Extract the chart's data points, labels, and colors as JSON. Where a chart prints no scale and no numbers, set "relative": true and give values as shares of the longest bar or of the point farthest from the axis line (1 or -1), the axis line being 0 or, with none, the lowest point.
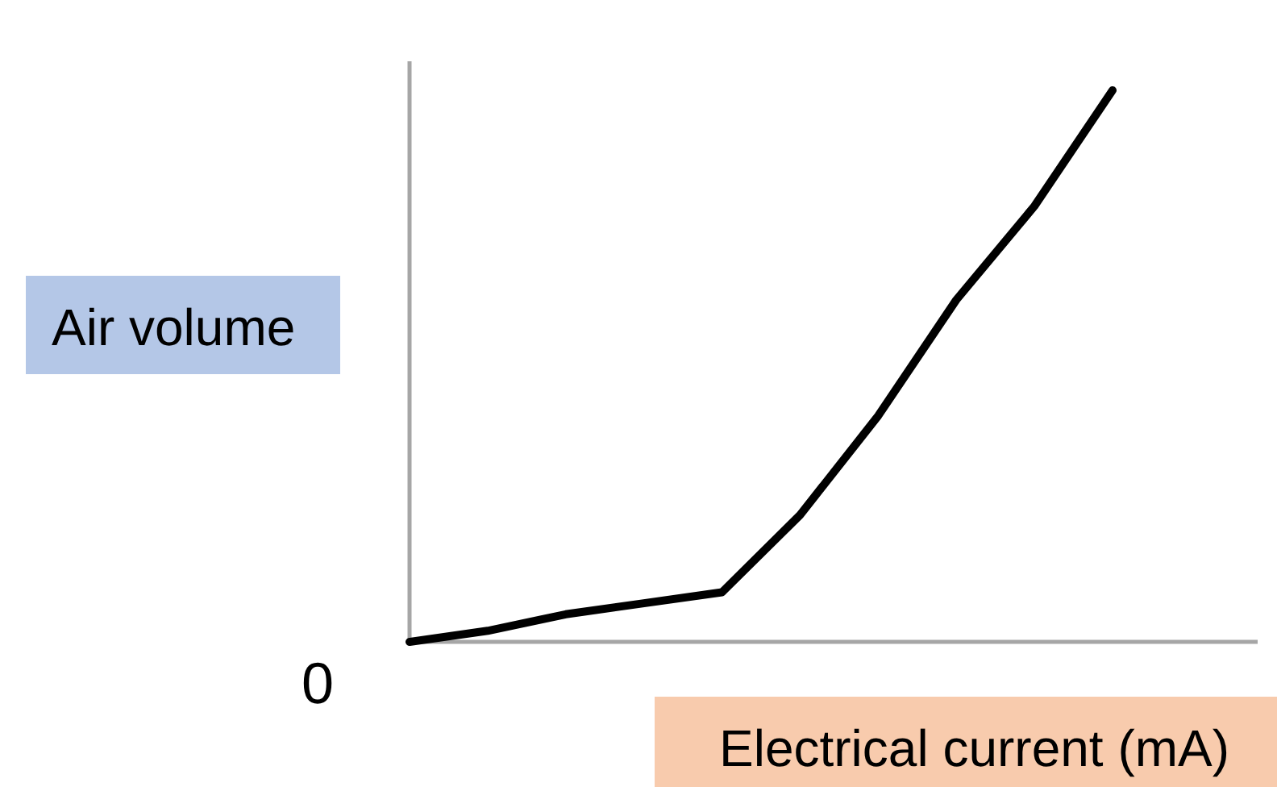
{
  "chart_data": {
    "type": "line",
    "xlabel": "Electrical current (mA)",
    "ylabel": "Air volume",
    "relative": true,
    "categories": [
      null,
      null,
      null,
      null,
      null,
      null,
      null,
      null,
      null,
      null
    ],
    "series": [
      {
        "color": "#000000",
        "values": [
          0,
          0.02,
          0.05,
          0.07,
          0.09,
          0.23,
          0.41,
          0.62,
          0.79,
          1
        ]
      }
    ],
    "annotations": [
      "0"
    ]
  }
}
